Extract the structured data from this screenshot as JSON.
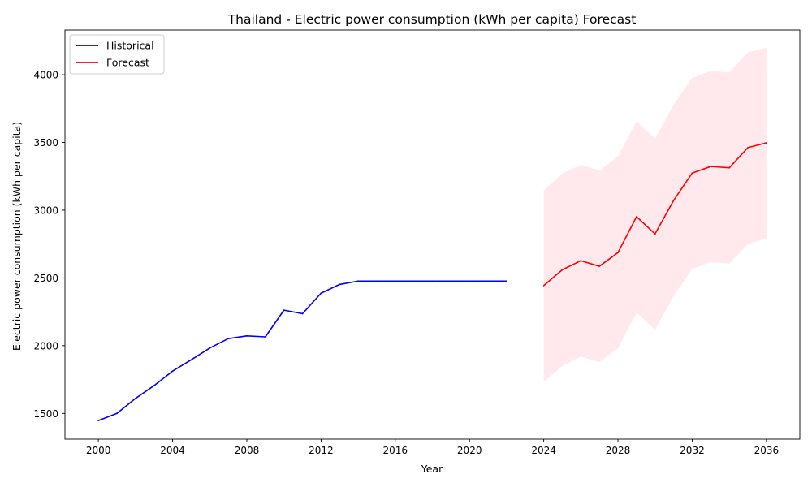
{
  "chart_data": {
    "type": "line",
    "title": "Thailand - Electric power consumption (kWh per capita) Forecast",
    "xlabel": "Year",
    "ylabel": "Electric power consumption (kWh per capita)",
    "xlim": [
      1998.2,
      2037.8
    ],
    "ylim": [
      1310,
      4330
    ],
    "xticks": [
      2000,
      2004,
      2008,
      2012,
      2016,
      2020,
      2024,
      2028,
      2032,
      2036
    ],
    "yticks": [
      1500,
      2000,
      2500,
      3000,
      3500,
      4000
    ],
    "grid": false,
    "legend_position": "top-left",
    "series": [
      {
        "name": "Historical",
        "color": "#0000ff",
        "x": [
          2000,
          2001,
          2002,
          2003,
          2004,
          2005,
          2006,
          2007,
          2008,
          2009,
          2010,
          2011,
          2012,
          2013,
          2014,
          2015,
          2016,
          2017,
          2018,
          2019,
          2020,
          2021,
          2022
        ],
        "y": [
          1447,
          1500,
          1610,
          1705,
          1812,
          1895,
          1982,
          2052,
          2072,
          2065,
          2262,
          2236,
          2387,
          2452,
          2477,
          2477,
          2477,
          2477,
          2477,
          2477,
          2477,
          2477,
          2477
        ]
      },
      {
        "name": "Forecast",
        "color": "#ff0000",
        "x": [
          2024,
          2025,
          2026,
          2027,
          2028,
          2029,
          2030,
          2031,
          2032,
          2033,
          2034,
          2035,
          2036
        ],
        "y": [
          2443,
          2560,
          2627,
          2586,
          2687,
          2952,
          2825,
          3072,
          3274,
          3323,
          3313,
          3462,
          3497
        ]
      }
    ],
    "confidence_band": {
      "color": "#ffc0cb",
      "opacity": 0.35,
      "x": [
        2024,
        2025,
        2026,
        2027,
        2028,
        2029,
        2030,
        2031,
        2032,
        2033,
        2034,
        2035,
        2036
      ],
      "lower": [
        1731,
        1850,
        1919,
        1878,
        1980,
        2244,
        2118,
        2365,
        2566,
        2617,
        2606,
        2750,
        2790
      ],
      "upper": [
        3148,
        3270,
        3335,
        3293,
        3397,
        3657,
        3530,
        3780,
        3976,
        4028,
        4018,
        4165,
        4200
      ]
    }
  }
}
